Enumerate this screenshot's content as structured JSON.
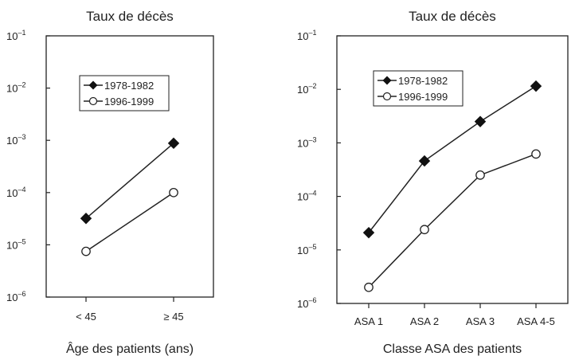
{
  "chart_data": [
    {
      "type": "line",
      "title": "Taux de décès",
      "xlabel": "Âge des patients (ans)",
      "ylabel": "",
      "yscale": "log",
      "ylim": [
        1e-06,
        0.1
      ],
      "ytick_labels": [
        {
          "base": "10",
          "exp": "–1"
        },
        {
          "base": "10",
          "exp": "–2"
        },
        {
          "base": "10",
          "exp": "–3"
        },
        {
          "base": "10",
          "exp": "–4"
        },
        {
          "base": "10",
          "exp": "–5"
        },
        {
          "base": "10",
          "exp": "–6"
        }
      ],
      "categories": [
        "< 45",
        "≥ 45"
      ],
      "legend_position": "upper-center",
      "series": [
        {
          "name": "1978-1982",
          "marker": "filled-diamond",
          "values": [
            3.2e-05,
            0.00088
          ]
        },
        {
          "name": "1996-1999",
          "marker": "open-circle",
          "values": [
            7.5e-06,
            0.0001
          ]
        }
      ]
    },
    {
      "type": "line",
      "title": "Taux de décès",
      "xlabel": "Classe ASA des patients",
      "ylabel": "",
      "yscale": "log",
      "ylim": [
        1e-06,
        0.1
      ],
      "ytick_labels": [
        {
          "base": "10",
          "exp": "–1"
        },
        {
          "base": "10",
          "exp": "–2"
        },
        {
          "base": "10",
          "exp": "–3"
        },
        {
          "base": "10",
          "exp": "–4"
        },
        {
          "base": "10",
          "exp": "–5"
        },
        {
          "base": "10",
          "exp": "–6"
        }
      ],
      "categories": [
        "ASA 1",
        "ASA 2",
        "ASA 3",
        "ASA 4-5"
      ],
      "legend_position": "upper-left",
      "series": [
        {
          "name": "1978-1982",
          "marker": "filled-diamond",
          "values": [
            2.1e-05,
            0.00046,
            0.0025,
            0.0115
          ]
        },
        {
          "name": "1996-1999",
          "marker": "open-circle",
          "values": [
            2e-06,
            2.4e-05,
            0.00025,
            0.00062
          ]
        }
      ]
    }
  ]
}
